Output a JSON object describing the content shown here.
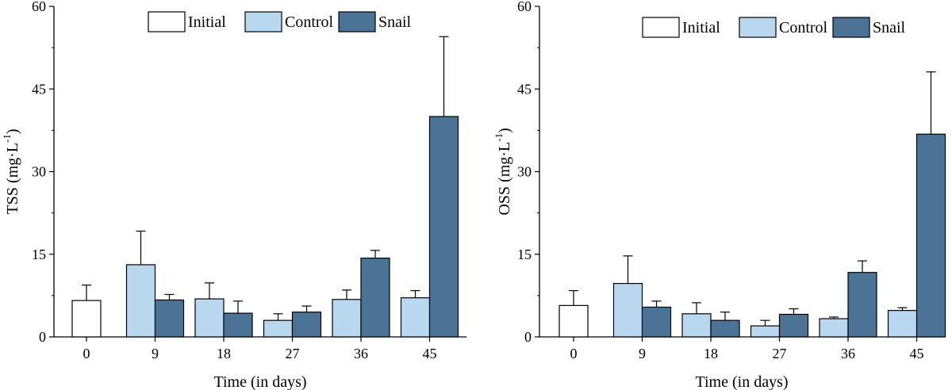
{
  "colors": {
    "initial": "#ffffff",
    "control": "#b9d7ef",
    "snail": "#4a7396",
    "stroke": "#000000"
  },
  "chart_data": [
    {
      "type": "bar",
      "panel": "left",
      "title": "",
      "xlabel": "Time (in days)",
      "ylabel": "TSS (mg·L",
      "ylabel_sup": "-1",
      "ylabel_close": ")",
      "categories": [
        "0",
        "9",
        "18",
        "27",
        "36",
        "45"
      ],
      "ylim": [
        0,
        60
      ],
      "yticks": [
        0,
        15,
        30,
        45,
        60
      ],
      "legend": [
        "Initial",
        "Control",
        "Snail"
      ],
      "series": [
        {
          "name": "Initial",
          "values": [
            6.6,
            null,
            null,
            null,
            null,
            null
          ],
          "errors": [
            2.8,
            null,
            null,
            null,
            null,
            null
          ]
        },
        {
          "name": "Control",
          "values": [
            null,
            13.1,
            6.9,
            3.0,
            6.8,
            7.1
          ],
          "errors": [
            null,
            6.1,
            2.9,
            1.2,
            1.7,
            1.3
          ]
        },
        {
          "name": "Snail",
          "values": [
            null,
            6.7,
            4.3,
            4.5,
            14.3,
            40.0
          ],
          "errors": [
            null,
            1.0,
            2.2,
            1.1,
            1.4,
            14.5
          ]
        }
      ]
    },
    {
      "type": "bar",
      "panel": "right",
      "title": "",
      "xlabel": "Time (in days)",
      "ylabel": "OSS (mg·L",
      "ylabel_sup": "-1",
      "ylabel_close": ")",
      "categories": [
        "0",
        "9",
        "18",
        "27",
        "36",
        "45"
      ],
      "ylim": [
        0,
        60
      ],
      "yticks": [
        0,
        15,
        30,
        45,
        60
      ],
      "legend": [
        "Initial",
        "Control",
        "Snail"
      ],
      "series": [
        {
          "name": "Initial",
          "values": [
            5.7,
            null,
            null,
            null,
            null,
            null
          ],
          "errors": [
            2.7,
            null,
            null,
            null,
            null,
            null
          ]
        },
        {
          "name": "Control",
          "values": [
            null,
            9.7,
            4.2,
            2.0,
            3.3,
            4.8
          ],
          "errors": [
            null,
            5.0,
            2.0,
            1.0,
            0.3,
            0.5
          ]
        },
        {
          "name": "Snail",
          "values": [
            null,
            5.4,
            3.0,
            4.1,
            11.7,
            36.8
          ],
          "errors": [
            null,
            1.1,
            1.5,
            1.0,
            2.1,
            11.3
          ]
        }
      ]
    }
  ]
}
